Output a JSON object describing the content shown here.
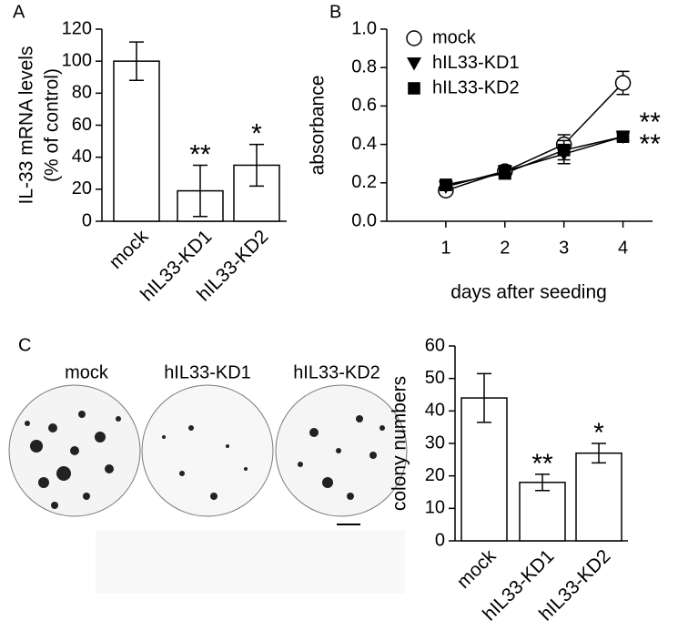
{
  "panel_labels": [
    "A",
    "B",
    "C"
  ],
  "colony_images": {
    "labels": [
      "mock",
      "hIL33-KD1",
      "hIL33-KD2"
    ]
  },
  "chart_data": [
    {
      "type": "bar",
      "ylabel": [
        "IL-33 mRNA levels",
        "(% of control)"
      ],
      "categories": [
        "mock",
        "hIL33-KD1",
        "hIL33-KD2"
      ],
      "values": [
        100,
        19,
        35
      ],
      "errors": [
        12,
        16,
        13
      ],
      "annotations": [
        null,
        "**",
        "*"
      ],
      "color": "#ffffff",
      "ylim": [
        0,
        120
      ],
      "yticks": [
        0,
        20,
        40,
        60,
        80,
        100,
        120
      ]
    },
    {
      "type": "line",
      "xlabel": "days after seeding",
      "ylabel": "absorbance",
      "x": [
        1,
        2,
        3,
        4
      ],
      "xlim": [
        0,
        4.5
      ],
      "xticks": [
        1,
        2,
        3,
        4
      ],
      "ylim": [
        0,
        1
      ],
      "yticks": [
        {
          "value": 0,
          "label": "0.0"
        },
        0.2,
        0.4,
        0.6,
        0.8,
        {
          "value": 1,
          "label": "1.0"
        }
      ],
      "legend": "upper left",
      "series": [
        {
          "name": "mock",
          "marker": "circle-open",
          "color": "#000000",
          "values": [
            0.16,
            0.26,
            0.4,
            0.72
          ],
          "errors": [
            0.02,
            0.03,
            0.05,
            0.06
          ],
          "annotation": null
        },
        {
          "name": "hIL33-KD1",
          "marker": "triangle-down",
          "color": "#000000",
          "values": [
            0.18,
            0.26,
            0.35,
            0.44
          ],
          "errors": [
            0.02,
            0.03,
            0.05,
            0.02
          ],
          "annotation": "**"
        },
        {
          "name": "hIL33-KD2",
          "marker": "square",
          "color": "#000000",
          "values": [
            0.19,
            0.25,
            0.37,
            0.44
          ],
          "errors": [
            0.02,
            0.03,
            0.05,
            0.02
          ],
          "annotation": "**"
        }
      ]
    },
    {
      "type": "bar",
      "ylabel": "colony numbers",
      "categories": [
        "mock",
        "hIL33-KD1",
        "hIL33-KD2"
      ],
      "values": [
        44,
        18,
        27
      ],
      "errors": [
        7.5,
        2.5,
        3
      ],
      "annotations": [
        null,
        "**",
        "*"
      ],
      "color": "#ffffff",
      "ylim": [
        0,
        60
      ],
      "yticks": [
        0,
        10,
        20,
        30,
        40,
        50,
        60
      ]
    }
  ]
}
